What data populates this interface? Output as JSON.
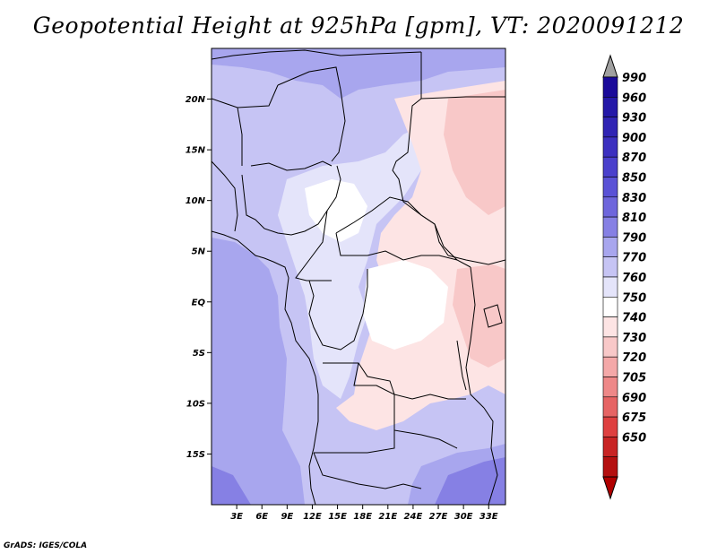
{
  "title": "Geopotential Height at 925hPa [gpm], VT: 2020091212",
  "credit": "GrADS: IGES/COLA",
  "map": {
    "lon_range": [
      0,
      35
    ],
    "lat_range": [
      -20,
      25
    ],
    "lat_ticks": [
      {
        "value": 20,
        "label": "20N"
      },
      {
        "value": 15,
        "label": "15N"
      },
      {
        "value": 10,
        "label": "10N"
      },
      {
        "value": 5,
        "label": "5N"
      },
      {
        "value": 0,
        "label": "EQ"
      },
      {
        "value": -5,
        "label": "5S"
      },
      {
        "value": -10,
        "label": "10S"
      },
      {
        "value": -15,
        "label": "15S"
      }
    ],
    "lon_ticks": [
      {
        "value": 3,
        "label": "3E"
      },
      {
        "value": 6,
        "label": "6E"
      },
      {
        "value": 9,
        "label": "9E"
      },
      {
        "value": 12,
        "label": "12E"
      },
      {
        "value": 15,
        "label": "15E"
      },
      {
        "value": 18,
        "label": "18E"
      },
      {
        "value": 21,
        "label": "21E"
      },
      {
        "value": 24,
        "label": "24E"
      },
      {
        "value": 27,
        "label": "27E"
      },
      {
        "value": 30,
        "label": "30E"
      },
      {
        "value": 33,
        "label": "33E"
      }
    ]
  },
  "colorbar": {
    "levels": [
      "990",
      "960",
      "930",
      "900",
      "870",
      "850",
      "830",
      "810",
      "790",
      "770",
      "760",
      "750",
      "740",
      "730",
      "720",
      "705",
      "690",
      "675",
      "650"
    ],
    "colors": [
      "#1a0a9a",
      "#2418a8",
      "#3024b4",
      "#3c30c0",
      "#4a40cc",
      "#5a52d6",
      "#6e66dc",
      "#8680e4",
      "#a8a6ee",
      "#c6c4f4",
      "#e4e4fa",
      "#ffffff",
      "#fde4e4",
      "#f8c8c8",
      "#f4a8a8",
      "#ee8888",
      "#e66464",
      "#de4040",
      "#c82424",
      "#b41010"
    ],
    "over_color": "#a0a0a0",
    "under_color": "#b00000"
  },
  "field_colors": {
    "z790": "#a8a6ee",
    "z770": "#c6c4f4",
    "z760": "#e4e4fa",
    "z750": "#ffffff",
    "z740": "#fde4e4",
    "z730": "#f8c8c8",
    "z810": "#8680e4"
  }
}
